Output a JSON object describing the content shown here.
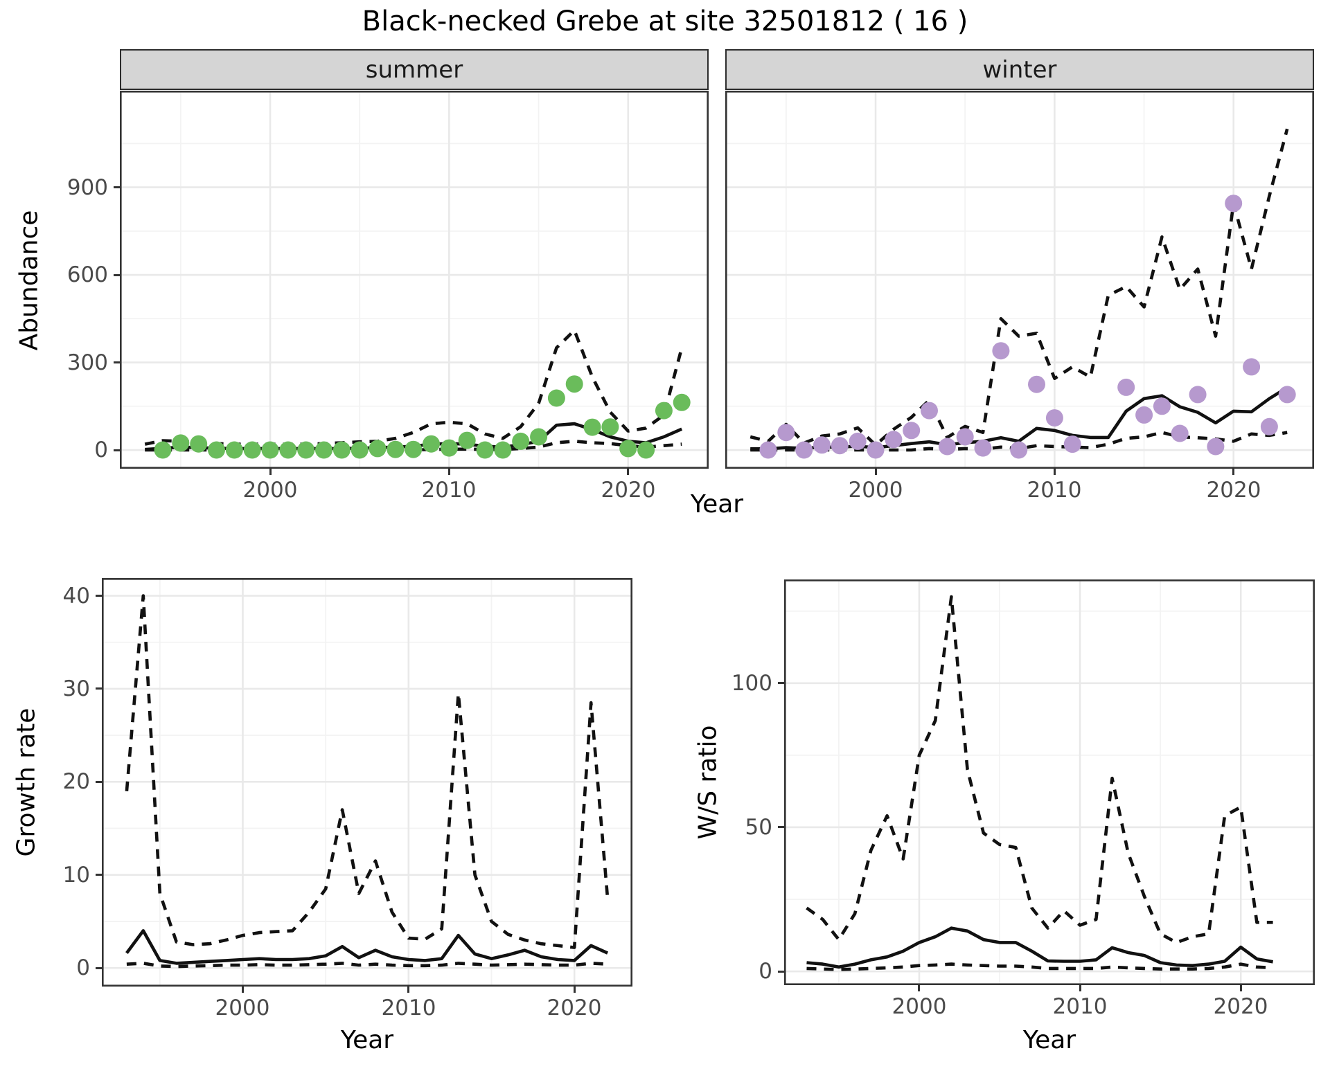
{
  "title": "Black-necked Grebe at site 32501812 ( 16 )",
  "accent_colors": {
    "summer_points": "#6abc5b",
    "winter_points": "#b699ce",
    "line": "#111111"
  },
  "chart_data": [
    {
      "id": "abundance-summer",
      "type": "line+scatter",
      "facet": "summer",
      "xlabel": "Year",
      "ylabel": "Abundance",
      "xlim": [
        1991.6,
        2024.5
      ],
      "ylim": [
        -64,
        1231
      ],
      "xticks": [
        2000,
        2010,
        2020
      ],
      "xminor": [
        1995,
        2005,
        2015
      ],
      "yticks": [
        0,
        300,
        600,
        900
      ],
      "yminor": [
        150,
        450,
        750,
        1050
      ],
      "grid": "on",
      "legend": "none",
      "point_color": "#6abc5b",
      "points": {
        "years": [
          1994,
          1995,
          1996,
          1997,
          1998,
          1999,
          2000,
          2001,
          2002,
          2003,
          2004,
          2005,
          2006,
          2007,
          2008,
          2009,
          2010,
          2011,
          2012,
          2013,
          2014,
          2015,
          2016,
          2017,
          2018,
          2019,
          2020,
          2021,
          2022,
          2023
        ],
        "values": [
          0,
          24,
          21,
          0,
          0,
          0,
          0,
          0,
          0,
          0,
          0,
          0,
          5,
          2,
          2,
          21,
          7,
          33,
          0,
          0,
          30,
          45,
          178,
          226,
          78,
          79,
          5,
          0,
          135,
          163
        ]
      },
      "lines": {
        "years": [
          1993,
          1994,
          1995,
          1996,
          1997,
          1998,
          1999,
          2000,
          2001,
          2002,
          2003,
          2004,
          2005,
          2006,
          2007,
          2008,
          2009,
          2010,
          2011,
          2012,
          2013,
          2014,
          2015,
          2016,
          2017,
          2018,
          2019,
          2020,
          2021,
          2022,
          2023
        ],
        "median": [
          2,
          6,
          10,
          8,
          6,
          5,
          5,
          5,
          5,
          5,
          5,
          5,
          6,
          8,
          10,
          13,
          20,
          22,
          20,
          13,
          10,
          18,
          30,
          85,
          90,
          70,
          45,
          30,
          25,
          45,
          72
        ],
        "upper": [
          20,
          32,
          30,
          27,
          22,
          20,
          20,
          20,
          20,
          20,
          22,
          25,
          28,
          30,
          40,
          60,
          90,
          95,
          90,
          55,
          40,
          80,
          160,
          350,
          410,
          250,
          130,
          65,
          75,
          120,
          350
        ],
        "lower": [
          0,
          0,
          0,
          0,
          0,
          0,
          0,
          0,
          0,
          0,
          0,
          0,
          0,
          0,
          0,
          0,
          2,
          3,
          3,
          2,
          2,
          5,
          10,
          25,
          30,
          25,
          22,
          15,
          10,
          15,
          20
        ]
      }
    },
    {
      "id": "abundance-winter",
      "type": "line+scatter",
      "facet": "winter",
      "xlabel": "Year",
      "ylabel": "Abundance",
      "xlim": [
        1991.6,
        2024.5
      ],
      "ylim": [
        -64,
        1231
      ],
      "xticks": [
        2000,
        2010,
        2020
      ],
      "xminor": [
        1995,
        2005,
        2015
      ],
      "yticks": [
        0,
        300,
        600,
        900
      ],
      "yminor": [
        150,
        450,
        750,
        1050
      ],
      "grid": "on",
      "legend": "none",
      "point_color": "#b699ce",
      "points": {
        "years": [
          1994,
          1995,
          1996,
          1997,
          1998,
          1999,
          2000,
          2001,
          2002,
          2003,
          2004,
          2005,
          2006,
          2007,
          2008,
          2009,
          2010,
          2011,
          2014,
          2015,
          2016,
          2017,
          2018,
          2019,
          2020,
          2021,
          2022,
          2023
        ],
        "values": [
          0,
          60,
          0,
          17,
          15,
          30,
          0,
          36,
          67,
          135,
          12,
          45,
          7,
          340,
          0,
          225,
          110,
          20,
          215,
          120,
          150,
          57,
          190,
          12,
          845,
          285,
          80,
          190
        ]
      },
      "lines": {
        "years": [
          1993,
          1994,
          1995,
          1996,
          1997,
          1998,
          1999,
          2000,
          2001,
          2002,
          2003,
          2004,
          2005,
          2006,
          2007,
          2008,
          2009,
          2010,
          2011,
          2012,
          2013,
          2014,
          2015,
          2016,
          2017,
          2018,
          2019,
          2020,
          2021,
          2022,
          2023
        ],
        "median": [
          4,
          4,
          8,
          6,
          10,
          10,
          13,
          8,
          15,
          22,
          28,
          18,
          25,
          30,
          42,
          30,
          74,
          67,
          50,
          43,
          43,
          133,
          176,
          186,
          148,
          129,
          93,
          133,
          131,
          176,
          214
        ],
        "upper": [
          45,
          30,
          88,
          24,
          48,
          55,
          76,
          17,
          71,
          112,
          171,
          43,
          81,
          60,
          450,
          390,
          400,
          245,
          285,
          250,
          530,
          560,
          490,
          730,
          550,
          620,
          390,
          845,
          620,
          870,
          1100
        ],
        "lower": [
          0,
          0,
          0,
          0,
          0,
          0,
          0,
          0,
          0,
          0,
          5,
          2,
          5,
          3,
          10,
          5,
          15,
          12,
          10,
          8,
          20,
          40,
          45,
          60,
          45,
          42,
          38,
          30,
          55,
          50,
          60
        ]
      }
    },
    {
      "id": "growth-rate",
      "type": "line",
      "facet": "",
      "xlabel": "Year",
      "ylabel": "Growth rate",
      "xlim": [
        1991.5,
        2023.5
      ],
      "ylim": [
        -2,
        41.9
      ],
      "xticks": [
        2000,
        2010,
        2020
      ],
      "xminor": [
        1995,
        2005,
        2015
      ],
      "yticks": [
        0,
        10,
        20,
        30,
        40
      ],
      "yminor": [
        5,
        15,
        25,
        35
      ],
      "grid": "on",
      "legend": "none",
      "point_color": "",
      "points": {
        "years": [],
        "values": []
      },
      "lines": {
        "years": [
          1993,
          1994,
          1995,
          1996,
          1997,
          1998,
          1999,
          2000,
          2001,
          2002,
          2003,
          2004,
          2005,
          2006,
          2007,
          2008,
          2009,
          2010,
          2011,
          2012,
          2013,
          2014,
          2015,
          2016,
          2017,
          2018,
          2019,
          2020,
          2021,
          2022
        ],
        "median": [
          1.6,
          4,
          0.8,
          0.5,
          0.6,
          0.7,
          0.8,
          0.9,
          1,
          0.9,
          0.9,
          1,
          1.3,
          2.3,
          1.1,
          1.9,
          1.2,
          0.9,
          0.8,
          1,
          3.5,
          1.5,
          1,
          1.4,
          1.9,
          1.2,
          0.9,
          0.8,
          2.4,
          1.6
        ],
        "upper": [
          19,
          40,
          8,
          2.8,
          2.5,
          2.6,
          3,
          3.5,
          3.8,
          3.9,
          4,
          6,
          8.5,
          17,
          8,
          11.5,
          6,
          3.2,
          3.1,
          4.2,
          29.5,
          10,
          5,
          3.6,
          3,
          2.6,
          2.4,
          2.2,
          28.5,
          7.5
        ],
        "lower": [
          0.4,
          0.5,
          0.2,
          0.15,
          0.2,
          0.25,
          0.3,
          0.3,
          0.35,
          0.3,
          0.3,
          0.35,
          0.4,
          0.5,
          0.3,
          0.4,
          0.3,
          0.25,
          0.25,
          0.3,
          0.5,
          0.4,
          0.3,
          0.35,
          0.4,
          0.35,
          0.3,
          0.3,
          0.5,
          0.4
        ]
      }
    },
    {
      "id": "ws-ratio",
      "type": "line",
      "facet": "",
      "xlabel": "Year",
      "ylabel": "W/S ratio",
      "xlim": [
        1991.6,
        2024.6
      ],
      "ylim": [
        -4.8,
        136
      ],
      "xticks": [
        2000,
        2010,
        2020
      ],
      "xminor": [
        1995,
        2005,
        2015
      ],
      "yticks": [
        0,
        50,
        100
      ],
      "yminor": [
        25,
        75,
        125
      ],
      "grid": "on",
      "legend": "none",
      "point_color": "",
      "points": {
        "years": [],
        "values": []
      },
      "lines": {
        "years": [
          1993,
          1994,
          1995,
          1996,
          1997,
          1998,
          1999,
          2000,
          2001,
          2002,
          2003,
          2004,
          2005,
          2006,
          2007,
          2008,
          2009,
          2010,
          2011,
          2012,
          2013,
          2014,
          2015,
          2016,
          2017,
          2018,
          2019,
          2020,
          2021,
          2022
        ],
        "median": [
          3,
          2.5,
          1.5,
          2.5,
          4,
          5,
          7,
          10,
          12,
          15,
          14,
          11,
          10,
          10,
          7,
          3.6,
          3.5,
          3.5,
          4,
          8.2,
          6.5,
          5.5,
          3,
          2.2,
          2,
          2.5,
          3.5,
          8.4,
          4.3,
          3.3
        ],
        "upper": [
          22,
          18,
          11,
          20,
          42,
          54,
          39,
          75,
          87,
          130,
          70,
          48,
          44,
          43,
          22,
          15,
          21,
          16,
          18,
          67,
          41,
          26,
          13,
          10,
          12,
          13,
          54,
          57,
          17,
          17
        ],
        "lower": [
          1,
          0.8,
          0.6,
          0.8,
          1,
          1.2,
          1.5,
          2,
          2.2,
          2.5,
          2.2,
          2,
          1.8,
          1.8,
          1.5,
          1,
          1,
          1,
          1,
          1.5,
          1.2,
          1,
          0.8,
          0.8,
          0.8,
          1,
          1.5,
          2.5,
          1.5,
          1.2
        ]
      }
    }
  ]
}
